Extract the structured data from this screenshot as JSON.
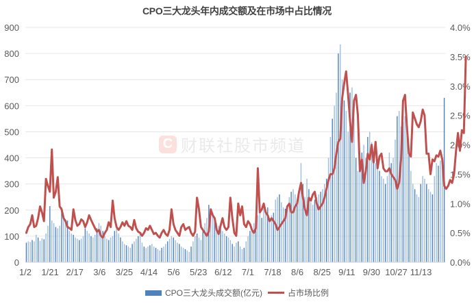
{
  "title": "CPO三大龙头年内成交额及在市场中占比情况",
  "watermark": {
    "logo": "C",
    "text": "财联社股市频道"
  },
  "legend": {
    "bar_label": "CPO三大龙头成交额(亿元)",
    "line_label": "占市场比例"
  },
  "colors": {
    "bar": "#4f81bd",
    "bar_light": "#9dbde3",
    "line": "#c0504d",
    "grid": "#e6e6e6",
    "text": "#595959"
  },
  "chart_data": {
    "type": "bar+line",
    "title": "CPO三大龙头年内成交额及在市场中占比情况",
    "xlabel": "",
    "ylabel_left": "成交额(亿元)",
    "ylabel_right": "占市场比例",
    "ylim_left": [
      0,
      900
    ],
    "ylim_right": [
      0,
      4.0
    ],
    "yticks_left": [
      "0",
      "100",
      "200",
      "300",
      "400",
      "500",
      "600",
      "700",
      "800",
      "900"
    ],
    "yticks_right": [
      "0.0%",
      "0.5%",
      "1.0%",
      "1.5%",
      "2.0%",
      "2.5%",
      "3.0%",
      "3.5%",
      "4.0%"
    ],
    "x_tick_labels": [
      "1/2",
      "1/21",
      "2/17",
      "3/6",
      "3/25",
      "4/14",
      "5/6",
      "5/23",
      "6/12",
      "7/1",
      "7/18",
      "8/6",
      "8/25",
      "9/11",
      "9/30",
      "10/27",
      "11/13"
    ],
    "grid": true,
    "legend_position": "bottom",
    "series": [
      {
        "name": "CPO三大龙头成交额(亿元)",
        "type": "bar",
        "axis": "left",
        "values": [
          75,
          80,
          78,
          85,
          80,
          105,
          95,
          82,
          92,
          88,
          110,
          140,
          215,
          160,
          150,
          135,
          130,
          140,
          210,
          180,
          150,
          160,
          120,
          110,
          105,
          95,
          90,
          85,
          90,
          100,
          130,
          120,
          110,
          100,
          95,
          105,
          130,
          150,
          140,
          120,
          100,
          90,
          85,
          95,
          100,
          120,
          130,
          110,
          95,
          80,
          70,
          65,
          60,
          55,
          70,
          80,
          90,
          100,
          110,
          75,
          60,
          55,
          60,
          65,
          70,
          60,
          55,
          50,
          45,
          55,
          60,
          70,
          80,
          90,
          100,
          95,
          85,
          75,
          70,
          60,
          55,
          50,
          45,
          40,
          60,
          80,
          100,
          110,
          95,
          85,
          120,
          150,
          170,
          220,
          200,
          180,
          160,
          150,
          140,
          130,
          120,
          110,
          100,
          95,
          85,
          70,
          60,
          75,
          80,
          60,
          50,
          55,
          80,
          100,
          120,
          130,
          150,
          170,
          180,
          200,
          170,
          220,
          190,
          210,
          160,
          180,
          190,
          240,
          250,
          260,
          230,
          210,
          205,
          220,
          250,
          270,
          280,
          260,
          240,
          260,
          380,
          300,
          250,
          320,
          280,
          230,
          220,
          240,
          250,
          260,
          270,
          280,
          300,
          320,
          400,
          480,
          550,
          600,
          650,
          800,
          835,
          700,
          620,
          580,
          500,
          650,
          670,
          550,
          400,
          350,
          380,
          420,
          450,
          400,
          480,
          500,
          460,
          420,
          380,
          360,
          350,
          330,
          320,
          300,
          330,
          420,
          380,
          400,
          470,
          560,
          580,
          520,
          540,
          560,
          500,
          420,
          350,
          300,
          280,
          260,
          250,
          300,
          330,
          320,
          300,
          280,
          270,
          260,
          330,
          380,
          370,
          390,
          400,
          630
        ]
      },
      {
        "name": "占市场比例",
        "type": "line",
        "axis": "right",
        "values": [
          0.5,
          0.6,
          0.65,
          0.8,
          0.6,
          0.62,
          0.75,
          0.95,
          0.85,
          0.7,
          1.42,
          1.3,
          1.2,
          1.92,
          1.1,
          1.2,
          1.45,
          0.95,
          0.9,
          0.75,
          0.7,
          0.6,
          0.58,
          0.55,
          0.9,
          0.72,
          0.62,
          0.65,
          0.73,
          0.7,
          0.6,
          0.68,
          0.8,
          0.72,
          0.65,
          0.58,
          0.52,
          0.55,
          0.45,
          0.42,
          0.5,
          0.55,
          0.68,
          0.6,
          1.05,
          0.75,
          0.6,
          0.55,
          0.6,
          0.68,
          0.62,
          0.7,
          0.62,
          0.6,
          0.55,
          0.72,
          0.58,
          0.52,
          0.5,
          0.45,
          0.5,
          0.58,
          0.55,
          0.62,
          0.55,
          0.48,
          0.5,
          0.45,
          0.42,
          0.5,
          0.55,
          0.48,
          0.45,
          0.55,
          0.9,
          0.65,
          0.55,
          0.5,
          0.45,
          0.6,
          0.65,
          0.55,
          0.58,
          0.6,
          0.5,
          0.45,
          0.52,
          1.1,
          0.9,
          0.6,
          0.55,
          0.5,
          0.45,
          0.52,
          0.9,
          0.8,
          0.75,
          0.55,
          0.48,
          0.62,
          0.75,
          0.6,
          0.55,
          0.6,
          1.1,
          0.75,
          0.5,
          0.45,
          1.0,
          0.8,
          0.95,
          0.65,
          0.6,
          0.7,
          0.65,
          0.55,
          0.5,
          0.58,
          1.6,
          0.85,
          0.9,
          1.0,
          0.85,
          0.8,
          0.7,
          0.75,
          0.7,
          0.65,
          0.55,
          0.6,
          0.65,
          0.7,
          0.75,
          0.95,
          1.0,
          0.85,
          0.85,
          0.95,
          1.0,
          1.2,
          1.35,
          1.1,
          0.9,
          0.8,
          1.1,
          1.05,
          1.15,
          1.2,
          1.0,
          0.9,
          0.95,
          1.0,
          1.1,
          1.25,
          1.4,
          1.5,
          1.5,
          1.6,
          1.85,
          2.05,
          2.1,
          2.8,
          3.05,
          3.25,
          2.85,
          2.4,
          2.05,
          2.75,
          2.85,
          2.5,
          1.55,
          1.75,
          1.35,
          1.55,
          1.85,
          1.75,
          2.0,
          1.7,
          2.05,
          1.6,
          1.8,
          1.85,
          1.6,
          1.55,
          1.55,
          1.6,
          1.5,
          1.45,
          1.4,
          1.25,
          1.35,
          1.75,
          2.75,
          2.85,
          2.3,
          1.85,
          1.8,
          2.55,
          2.45,
          2.35,
          2.3,
          2.4,
          2.6,
          2.5,
          1.85,
          1.85,
          1.5,
          1.75,
          1.72,
          1.82,
          1.8,
          1.9,
          1.75,
          1.3,
          1.25,
          1.3,
          1.4,
          1.35,
          1.5,
          1.9,
          2.2,
          1.9,
          2.25,
          2.2,
          3.5
        ]
      }
    ]
  }
}
